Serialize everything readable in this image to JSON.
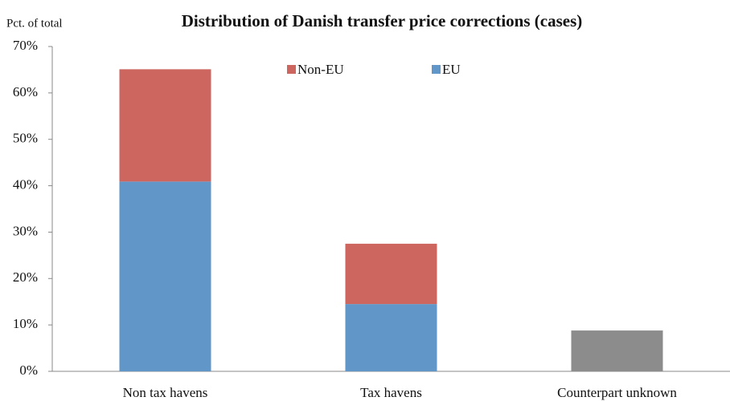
{
  "chart_data": {
    "type": "bar",
    "stacked": true,
    "title": "Distribution of Danish transfer price corrections (cases)",
    "ylabel": "Pct. of total",
    "categories": [
      "Non tax havens",
      "Tax havens",
      "Counterpart unknown"
    ],
    "series": [
      {
        "name": "EU",
        "color": "#6196c9",
        "values": [
          40.9,
          14.5,
          null
        ]
      },
      {
        "name": "Non-EU",
        "color": "#cd665f",
        "values": [
          24.2,
          13,
          null
        ]
      },
      {
        "color": "#8c8c8c",
        "values": [
          null,
          null,
          8.8
        ]
      }
    ],
    "ylim": [
      0,
      70
    ],
    "yticks": [
      {
        "value": 0,
        "label": "0%"
      },
      {
        "value": 10,
        "label": "10%"
      },
      {
        "value": 20,
        "label": "20%"
      },
      {
        "value": 30,
        "label": "30%"
      },
      {
        "value": 40,
        "label": "40%"
      },
      {
        "value": 50,
        "label": "50%"
      },
      {
        "value": 60,
        "label": "60%"
      },
      {
        "value": 70,
        "label": "70%"
      }
    ],
    "grid": false
  }
}
